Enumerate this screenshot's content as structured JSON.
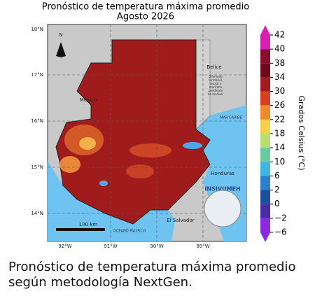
{
  "title": "Pronóstico de temperatura máxima promedio",
  "subtitle": "Agosto 2026",
  "map": {
    "lat_labels": [
      "18°N",
      "17°N",
      "16°N",
      "15°N",
      "14°N"
    ],
    "lon_labels": [
      "92°W",
      "91°W",
      "90°W",
      "89°W"
    ],
    "places": [
      "México",
      "Belice",
      "Honduras",
      "El Salvador",
      "MAR CARIBE",
      "OCÉANO PACÍFICO"
    ],
    "dispute_note": [
      "Diferendo",
      "territorial,",
      "insular y",
      "marítimo",
      "pendiente",
      "de resolver"
    ],
    "north": "N",
    "scale": "100 km",
    "logo": "INSIVUMEH"
  },
  "colorbar": {
    "label": "Grados Celsius (°C)",
    "ticks": [
      42,
      40,
      38,
      34,
      30,
      26,
      22,
      18,
      14,
      10,
      6,
      2,
      0,
      {
        "value": -2,
        "label": "−2"
      },
      {
        "value": -6,
        "label": "−6"
      }
    ],
    "colors": [
      "#d81fb4",
      "#8c0c2c",
      "#6e0a1a",
      "#a51b1f",
      "#d8401f",
      "#f08a2a",
      "#f7cf4a",
      "#b9de6e",
      "#6cc8a0",
      "#3fb6e0",
      "#2a7fd0",
      "#1d4fa0",
      "#4a2aa8",
      "#8a2be2"
    ]
  },
  "caption": [
    "Pronóstico de temperatura máxima promedio",
    "según metodología NextGen."
  ]
}
